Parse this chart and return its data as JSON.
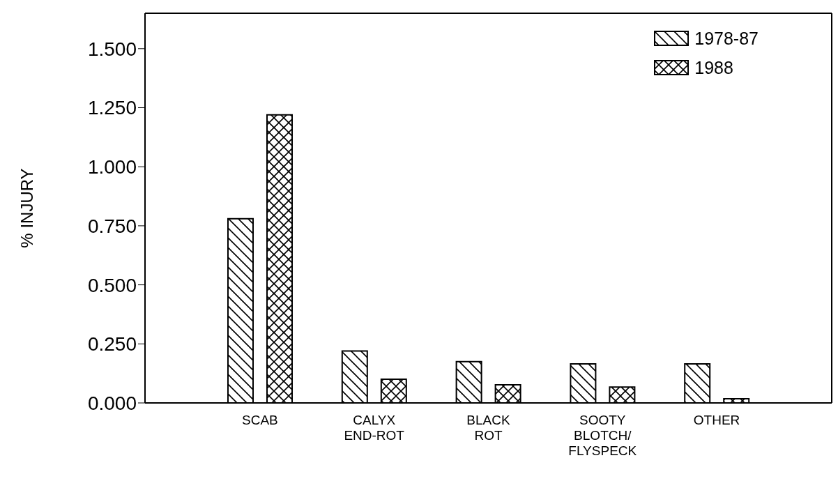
{
  "chart_data": {
    "type": "bar",
    "ylabel": "% INJURY",
    "categories": [
      "SCAB",
      "CALYX\nEND-ROT",
      "BLACK\nROT",
      "SOOTY\nBLOTCH/\nFLYSPECK",
      "OTHER"
    ],
    "series": [
      {
        "name": "1978-87",
        "color": "#000000",
        "values": [
          0.78,
          0.22,
          0.175,
          0.165,
          0.165
        ]
      },
      {
        "name": "1988",
        "color": "#000000",
        "values": [
          1.22,
          0.1,
          0.077,
          0.067,
          0.018
        ]
      }
    ],
    "ylim": [
      0,
      1.65
    ],
    "yticks": [
      {
        "value": 0,
        "label": "0.000"
      },
      {
        "value": 0.25,
        "label": "0.250"
      },
      {
        "value": 0.5,
        "label": "0.500"
      },
      {
        "value": 0.75,
        "label": "0.750"
      },
      {
        "value": 1.0,
        "label": "1.000"
      },
      {
        "value": 1.25,
        "label": "1.250"
      },
      {
        "value": 1.5,
        "label": "1.500"
      }
    ],
    "grid": false,
    "legend": "top right"
  }
}
